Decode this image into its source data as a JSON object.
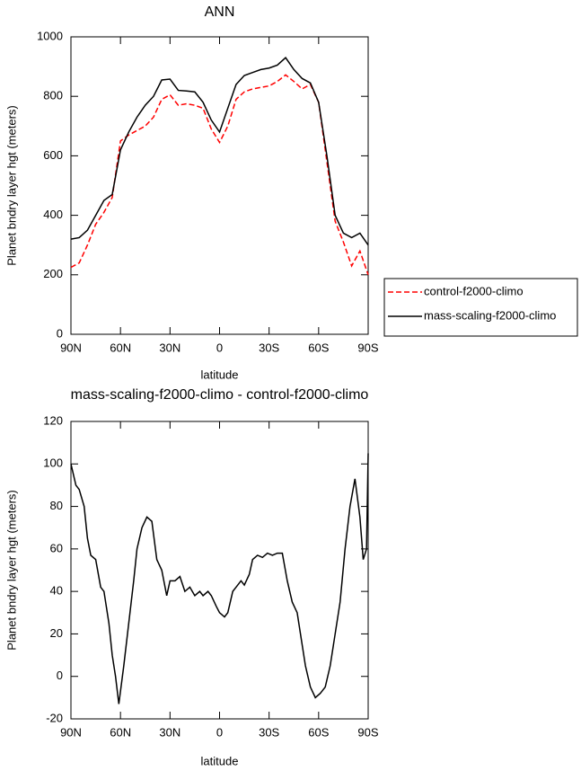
{
  "chart_data": [
    {
      "type": "line",
      "title": "ANN",
      "xlabel": "latitude",
      "ylabel": "Planet bndry layer hgt (meters)",
      "x": [
        90,
        85,
        80,
        75,
        70,
        65,
        60,
        55,
        50,
        45,
        40,
        35,
        30,
        25,
        20,
        15,
        10,
        5,
        0,
        -5,
        -10,
        -15,
        -20,
        -25,
        -30,
        -35,
        -40,
        -45,
        -50,
        -55,
        -60,
        -65,
        -70,
        -75,
        -80,
        -85,
        -90
      ],
      "series": [
        {
          "name": "control-f2000-climo",
          "color": "#ff0000",
          "line_style": "dashed",
          "values": [
            225,
            240,
            300,
            370,
            410,
            460,
            650,
            670,
            685,
            700,
            730,
            790,
            805,
            770,
            775,
            770,
            760,
            690,
            645,
            700,
            790,
            815,
            825,
            830,
            835,
            850,
            872,
            850,
            825,
            840,
            780,
            580,
            380,
            310,
            230,
            280,
            200
          ]
        },
        {
          "name": "mass-scaling-f2000-climo",
          "color": "#000000",
          "line_style": "solid",
          "values": [
            320,
            325,
            350,
            400,
            450,
            470,
            620,
            680,
            730,
            770,
            800,
            855,
            858,
            820,
            818,
            815,
            780,
            720,
            680,
            760,
            840,
            870,
            880,
            890,
            895,
            905,
            930,
            890,
            860,
            845,
            780,
            600,
            400,
            340,
            325,
            340,
            300
          ]
        }
      ],
      "xlim": [
        90,
        -90
      ],
      "xticks": [
        {
          "value": 90,
          "label": "90N"
        },
        {
          "value": 60,
          "label": "60N"
        },
        {
          "value": 30,
          "label": "30N"
        },
        0,
        {
          "value": -30,
          "label": "30S"
        },
        {
          "value": -60,
          "label": "60S"
        },
        {
          "value": -90,
          "label": "90S"
        }
      ],
      "ylim": [
        0,
        1000
      ],
      "yticks": [
        0,
        200,
        400,
        600,
        800,
        1000
      ],
      "legend": "right"
    },
    {
      "type": "line",
      "title": "mass-scaling-f2000-climo - control-f2000-climo",
      "xlabel": "latitude",
      "ylabel": "Planet bndry layer hgt (meters)",
      "x": [
        90,
        87,
        85,
        82,
        80,
        78,
        75,
        72,
        70,
        67,
        65,
        63,
        61,
        58,
        55,
        52,
        50,
        47,
        44,
        41,
        38,
        35,
        32,
        30,
        27,
        24,
        21,
        18,
        15,
        12,
        10,
        7,
        5,
        2,
        0,
        -3,
        -5,
        -8,
        -10,
        -13,
        -15,
        -18,
        -20,
        -23,
        -26,
        -29,
        -32,
        -35,
        -38,
        -41,
        -44,
        -47,
        -50,
        -52,
        -55,
        -58,
        -61,
        -64,
        -67,
        -70,
        -73,
        -76,
        -79,
        -82,
        -85,
        -87,
        -89,
        -90
      ],
      "values": [
        100,
        90,
        88,
        80,
        65,
        57,
        55,
        42,
        40,
        25,
        10,
        0,
        -13,
        5,
        25,
        45,
        60,
        70,
        75,
        73,
        55,
        50,
        38,
        45,
        45,
        47,
        40,
        42,
        38,
        40,
        38,
        40,
        38,
        33,
        30,
        28,
        30,
        40,
        42,
        45,
        43,
        48,
        55,
        57,
        56,
        58,
        57,
        58,
        58,
        45,
        35,
        30,
        15,
        5,
        -5,
        -10,
        -8,
        -5,
        5,
        20,
        35,
        60,
        80,
        93,
        75,
        55,
        60,
        105
      ],
      "color": "#000000",
      "line_style": "solid",
      "xlim": [
        90,
        -90
      ],
      "xticks": [
        {
          "value": 90,
          "label": "90N"
        },
        {
          "value": 60,
          "label": "60N"
        },
        {
          "value": 30,
          "label": "30N"
        },
        0,
        {
          "value": -30,
          "label": "30S"
        },
        {
          "value": -60,
          "label": "60S"
        },
        {
          "value": -90,
          "label": "90S"
        }
      ],
      "ylim": [
        -20,
        120
      ],
      "yticks": [
        -20,
        0,
        20,
        40,
        60,
        80,
        100,
        120
      ]
    }
  ]
}
